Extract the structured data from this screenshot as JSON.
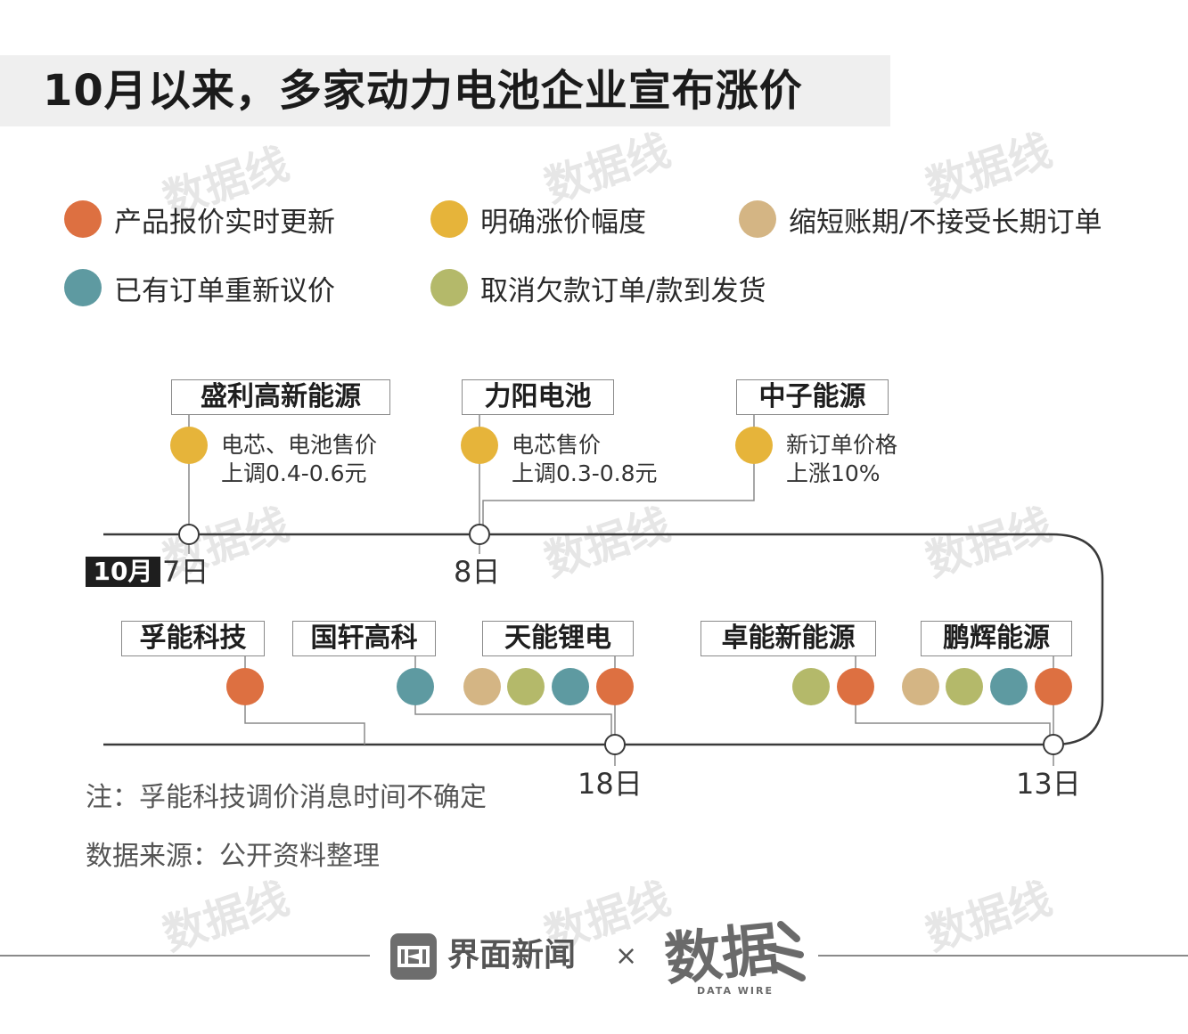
{
  "title": "10月以来，多家动力电池企业宣布涨价",
  "colors": {
    "orange": "#dd7041",
    "yellow": "#e6b43a",
    "tan": "#d4b584",
    "teal": "#5e9aa1",
    "olive": "#b4b96a",
    "line": "#3a3a3a",
    "connector": "#8a8a8a"
  },
  "legend": [
    {
      "key": "orange",
      "label": "产品报价实时更新"
    },
    {
      "key": "yellow",
      "label": "明确涨价幅度"
    },
    {
      "key": "tan",
      "label": "缩短账期/不接受长期订单"
    },
    {
      "key": "teal",
      "label": "已有订单重新议价"
    },
    {
      "key": "olive",
      "label": "取消欠款订单/款到发货"
    }
  ],
  "top_events": [
    {
      "company": "盛利高新能源",
      "marker": "yellow",
      "info_line1": "电芯、电池售价",
      "info_line2": "上调0.4-0.6元"
    },
    {
      "company": "力阳电池",
      "marker": "yellow",
      "info_line1": "电芯售价",
      "info_line2": "上调0.3-0.8元"
    },
    {
      "company": "中子能源",
      "marker": "yellow",
      "info_line1": "新订单价格",
      "info_line2": "上涨10%"
    }
  ],
  "bottom_events": [
    {
      "company": "孚能科技",
      "markers": [
        "orange"
      ]
    },
    {
      "company": "国轩高科",
      "markers": [
        "teal"
      ]
    },
    {
      "company": "天能锂电",
      "markers": [
        "tan",
        "olive",
        "teal",
        "orange"
      ]
    },
    {
      "company": "卓能新能源",
      "markers": [
        "olive",
        "orange"
      ]
    },
    {
      "company": "鹏辉能源",
      "markers": [
        "tan",
        "olive",
        "teal",
        "orange"
      ]
    }
  ],
  "dates": {
    "month_tag": "10月",
    "d7": "7日",
    "d8": "8日",
    "d18": "18日",
    "d13": "13日"
  },
  "note": "注：孚能科技调价消息时间不确定",
  "source": "数据来源：公开资料整理",
  "footer": {
    "brand": "界面新闻",
    "times": "×",
    "partner": "数据",
    "partner_en": "DATA WIRE",
    "watermark": "数据线"
  }
}
